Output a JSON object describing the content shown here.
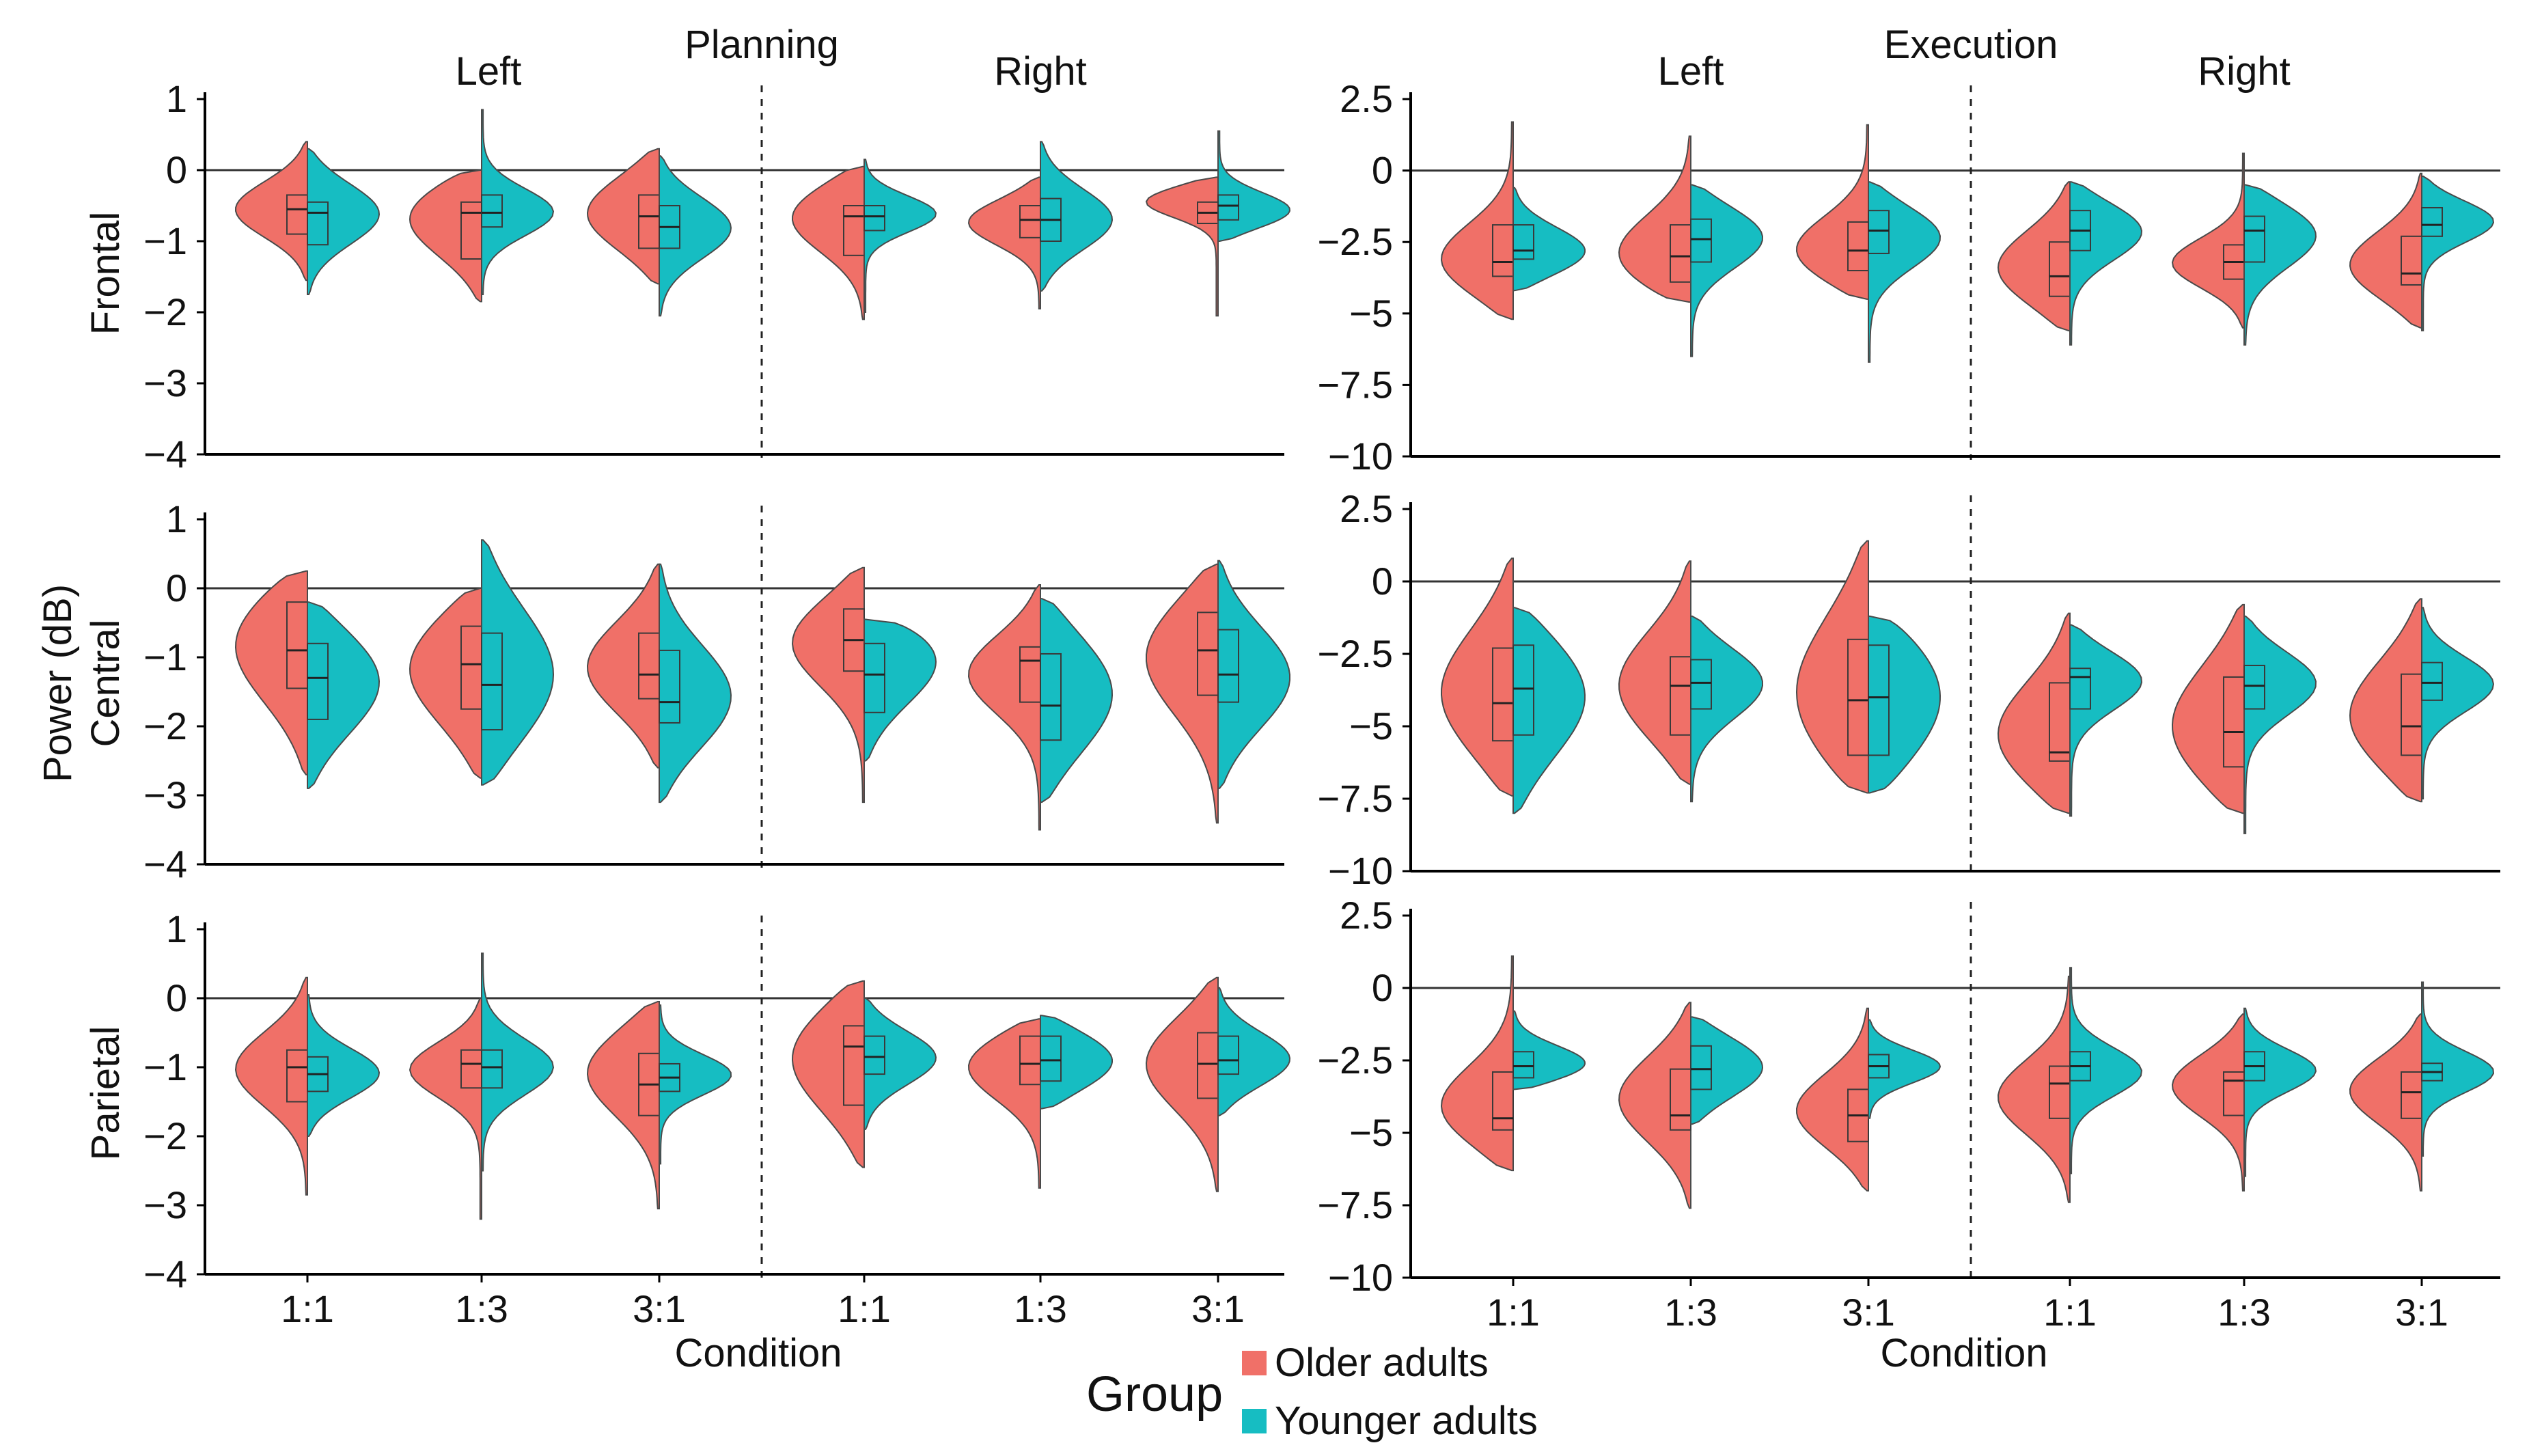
{
  "chart_data": [
    {
      "type": "violin",
      "panel": "planning-frontal",
      "section_title": "Planning",
      "region_label": "Frontal",
      "facet_labels": [
        "Left",
        "Right"
      ],
      "categories": [
        "1:1",
        "1:3",
        "3:1"
      ],
      "ylim": [
        -4,
        1
      ],
      "yticks": [
        1,
        0,
        -1,
        -2,
        -3,
        -4
      ],
      "ytick_labels": [
        "1",
        "0",
        "−1",
        "−2",
        "−3",
        "−4"
      ],
      "reference_line": 0,
      "series": [
        {
          "name": "Older adults",
          "groups": [
            {
              "min": -1.55,
              "q1": -0.9,
              "median": -0.55,
              "q3": -0.35,
              "max": 0.4,
              "mode": -0.55
            },
            {
              "min": -1.85,
              "q1": -1.25,
              "median": -0.6,
              "q3": -0.45,
              "max": 0.0,
              "mode": -0.6
            },
            {
              "min": -1.6,
              "q1": -1.1,
              "median": -0.65,
              "q3": -0.35,
              "max": 0.3,
              "mode": -0.6
            },
            {
              "min": -2.1,
              "q1": -1.2,
              "median": -0.65,
              "q3": -0.5,
              "max": 0.05,
              "mode": -0.6
            },
            {
              "min": -1.95,
              "q1": -0.95,
              "median": -0.7,
              "q3": -0.5,
              "max": -0.1,
              "mode": -0.7
            },
            {
              "min": -2.05,
              "q1": -0.75,
              "median": -0.6,
              "q3": -0.45,
              "max": -0.1,
              "mode": -0.4
            }
          ]
        },
        {
          "name": "Younger adults",
          "groups": [
            {
              "min": -1.75,
              "q1": -1.05,
              "median": -0.6,
              "q3": -0.45,
              "max": 0.3,
              "mode": -0.6
            },
            {
              "min": -1.75,
              "q1": -0.8,
              "median": -0.6,
              "q3": -0.35,
              "max": 0.85,
              "mode": -0.6
            },
            {
              "min": -2.05,
              "q1": -1.1,
              "median": -0.8,
              "q3": -0.5,
              "max": 0.2,
              "mode": -0.8
            },
            {
              "min": -2.0,
              "q1": -0.85,
              "median": -0.65,
              "q3": -0.5,
              "max": 0.15,
              "mode": -0.6
            },
            {
              "min": -1.7,
              "q1": -1.0,
              "median": -0.7,
              "q3": -0.4,
              "max": 0.4,
              "mode": -0.7
            },
            {
              "min": -1.0,
              "q1": -0.7,
              "median": -0.5,
              "q3": -0.35,
              "max": 0.55,
              "mode": -0.6
            }
          ]
        }
      ]
    },
    {
      "type": "violin",
      "panel": "planning-central",
      "region_label": "Central",
      "categories": [
        "1:1",
        "1:3",
        "3:1"
      ],
      "ylim": [
        -4,
        1
      ],
      "yticks": [
        1,
        0,
        -1,
        -2,
        -3,
        -4
      ],
      "ytick_labels": [
        "1",
        "0",
        "−1",
        "−2",
        "−3",
        "−4"
      ],
      "reference_line": 0,
      "series": [
        {
          "name": "Older adults",
          "groups": [
            {
              "min": -2.7,
              "q1": -1.45,
              "median": -0.9,
              "q3": -0.2,
              "max": 0.25,
              "mode": -0.7
            },
            {
              "min": -2.75,
              "q1": -1.75,
              "median": -1.1,
              "q3": -0.55,
              "max": 0.0,
              "mode": -1.1
            },
            {
              "min": -2.6,
              "q1": -1.6,
              "median": -1.25,
              "q3": -0.65,
              "max": 0.35,
              "mode": -1.15
            },
            {
              "min": -3.1,
              "q1": -1.2,
              "median": -0.75,
              "q3": -0.3,
              "max": 0.3,
              "mode": -0.7
            },
            {
              "min": -3.5,
              "q1": -1.65,
              "median": -1.05,
              "q3": -0.85,
              "max": 0.05,
              "mode": -1.2
            },
            {
              "min": -3.4,
              "q1": -1.55,
              "median": -0.9,
              "q3": -0.35,
              "max": 0.35,
              "mode": -0.9
            }
          ]
        },
        {
          "name": "Younger adults",
          "groups": [
            {
              "min": -2.9,
              "q1": -1.9,
              "median": -1.3,
              "q3": -0.8,
              "max": -0.2,
              "mode": -1.3
            },
            {
              "min": -2.85,
              "q1": -2.05,
              "median": -1.4,
              "q3": -0.65,
              "max": 0.7,
              "mode": -1.3
            },
            {
              "min": -3.1,
              "q1": -1.95,
              "median": -1.65,
              "q3": -0.9,
              "max": 0.35,
              "mode": -1.6
            },
            {
              "min": -2.5,
              "q1": -1.8,
              "median": -1.25,
              "q3": -0.8,
              "max": -0.45,
              "mode": -0.85
            },
            {
              "min": -3.1,
              "q1": -2.2,
              "median": -1.7,
              "q3": -0.95,
              "max": -0.15,
              "mode": -1.5
            },
            {
              "min": -2.9,
              "q1": -1.65,
              "median": -1.25,
              "q3": -0.6,
              "max": 0.4,
              "mode": -1.3
            }
          ]
        }
      ]
    },
    {
      "type": "violin",
      "panel": "planning-parietal",
      "region_label": "Parietal",
      "xlabel": "Condition",
      "categories": [
        "1:1",
        "1:3",
        "3:1"
      ],
      "ylim": [
        -4,
        1
      ],
      "yticks": [
        1,
        0,
        -1,
        -2,
        -3,
        -4
      ],
      "ytick_labels": [
        "1",
        "0",
        "−1",
        "−2",
        "−3",
        "−4"
      ],
      "reference_line": 0,
      "series": [
        {
          "name": "Older adults",
          "groups": [
            {
              "min": -2.85,
              "q1": -1.5,
              "median": -1.0,
              "q3": -0.75,
              "max": 0.3,
              "mode": -1.0
            },
            {
              "min": -3.2,
              "q1": -1.3,
              "median": -0.95,
              "q3": -0.75,
              "max": 0.0,
              "mode": -1.0
            },
            {
              "min": -3.05,
              "q1": -1.7,
              "median": -1.25,
              "q3": -0.8,
              "max": -0.05,
              "mode": -1.0
            },
            {
              "min": -2.45,
              "q1": -1.55,
              "median": -0.7,
              "q3": -0.4,
              "max": 0.25,
              "mode": -0.8
            },
            {
              "min": -2.75,
              "q1": -1.25,
              "median": -0.95,
              "q3": -0.55,
              "max": -0.3,
              "mode": -0.9
            },
            {
              "min": -2.8,
              "q1": -1.45,
              "median": -0.95,
              "q3": -0.5,
              "max": 0.3,
              "mode": -0.9
            }
          ]
        },
        {
          "name": "Younger adults",
          "groups": [
            {
              "min": -2.0,
              "q1": -1.35,
              "median": -1.1,
              "q3": -0.85,
              "max": 0.05,
              "mode": -1.1
            },
            {
              "min": -2.5,
              "q1": -1.3,
              "median": -1.0,
              "q3": -0.75,
              "max": 0.65,
              "mode": -1.0
            },
            {
              "min": -2.4,
              "q1": -1.35,
              "median": -1.15,
              "q3": -0.95,
              "max": -0.1,
              "mode": -1.1
            },
            {
              "min": -1.9,
              "q1": -1.1,
              "median": -0.85,
              "q3": -0.55,
              "max": 0.0,
              "mode": -0.85
            },
            {
              "min": -1.6,
              "q1": -1.2,
              "median": -0.9,
              "q3": -0.55,
              "max": -0.25,
              "mode": -0.9
            },
            {
              "min": -1.7,
              "q1": -1.1,
              "median": -0.9,
              "q3": -0.55,
              "max": 0.15,
              "mode": -0.9
            }
          ]
        }
      ]
    },
    {
      "type": "violin",
      "panel": "execution-frontal",
      "section_title": "Execution",
      "facet_labels": [
        "Left",
        "Right"
      ],
      "categories": [
        "1:1",
        "1:3",
        "3:1"
      ],
      "ylim": [
        -10,
        2.5
      ],
      "yticks": [
        2.5,
        0,
        -2.5,
        -5,
        -7.5,
        -10
      ],
      "ytick_labels": [
        "2.5",
        "0",
        "−2.5",
        "−5",
        "−7.5",
        "−10"
      ],
      "reference_line": 0,
      "series": [
        {
          "name": "Older adults",
          "groups": [
            {
              "min": -5.2,
              "q1": -3.7,
              "median": -3.2,
              "q3": -1.9,
              "max": 1.7,
              "mode": -3.3
            },
            {
              "min": -4.6,
              "q1": -3.9,
              "median": -3.0,
              "q3": -1.9,
              "max": 1.2,
              "mode": -3.2
            },
            {
              "min": -4.5,
              "q1": -3.5,
              "median": -2.8,
              "q3": -1.8,
              "max": 1.6,
              "mode": -3.0
            },
            {
              "min": -5.6,
              "q1": -4.4,
              "median": -3.7,
              "q3": -2.5,
              "max": -0.4,
              "mode": -3.5
            },
            {
              "min": -5.5,
              "q1": -3.8,
              "median": -3.2,
              "q3": -2.6,
              "max": 0.6,
              "mode": -3.3
            },
            {
              "min": -5.5,
              "q1": -4.0,
              "median": -3.6,
              "q3": -2.3,
              "max": -0.1,
              "mode": -3.4
            }
          ]
        },
        {
          "name": "Younger adults",
          "groups": [
            {
              "min": -4.2,
              "q1": -3.1,
              "median": -2.8,
              "q3": -1.9,
              "max": -0.6,
              "mode": -2.9
            },
            {
              "min": -6.5,
              "q1": -3.2,
              "median": -2.4,
              "q3": -1.7,
              "max": -0.5,
              "mode": -2.2
            },
            {
              "min": -6.7,
              "q1": -2.9,
              "median": -2.1,
              "q3": -1.4,
              "max": -0.4,
              "mode": -2.2
            },
            {
              "min": -6.1,
              "q1": -2.8,
              "median": -2.1,
              "q3": -1.4,
              "max": -0.4,
              "mode": -2.0
            },
            {
              "min": -6.1,
              "q1": -3.2,
              "median": -2.1,
              "q3": -1.6,
              "max": -0.5,
              "mode": -2.1
            },
            {
              "min": -5.6,
              "q1": -2.3,
              "median": -1.9,
              "q3": -1.3,
              "max": -0.2,
              "mode": -1.7
            }
          ]
        }
      ]
    },
    {
      "type": "violin",
      "panel": "execution-central",
      "categories": [
        "1:1",
        "1:3",
        "3:1"
      ],
      "ylim": [
        -10,
        2.5
      ],
      "yticks": [
        2.5,
        0,
        -2.5,
        -5,
        -7.5,
        -10
      ],
      "ytick_labels": [
        "2.5",
        "0",
        "−2.5",
        "−5",
        "−7.5",
        "−10"
      ],
      "reference_line": 0,
      "series": [
        {
          "name": "Older adults",
          "groups": [
            {
              "min": -7.4,
              "q1": -5.5,
              "median": -4.2,
              "q3": -2.3,
              "max": 0.8,
              "mode": -4.0
            },
            {
              "min": -7.0,
              "q1": -5.3,
              "median": -3.6,
              "q3": -2.6,
              "max": 0.7,
              "mode": -3.7
            },
            {
              "min": -7.3,
              "q1": -6.0,
              "median": -4.1,
              "q3": -2.0,
              "max": 1.4,
              "mode": -4.2
            },
            {
              "min": -8.0,
              "q1": -6.2,
              "median": -5.9,
              "q3": -3.5,
              "max": -1.1,
              "mode": -5.5
            },
            {
              "min": -8.0,
              "q1": -6.4,
              "median": -5.2,
              "q3": -3.3,
              "max": -0.8,
              "mode": -5.2
            },
            {
              "min": -7.6,
              "q1": -6.0,
              "median": -5.0,
              "q3": -3.2,
              "max": -0.6,
              "mode": -4.8
            }
          ]
        },
        {
          "name": "Younger adults",
          "groups": [
            {
              "min": -8.0,
              "q1": -5.3,
              "median": -3.7,
              "q3": -2.2,
              "max": -0.9,
              "mode": -3.8
            },
            {
              "min": -7.6,
              "q1": -4.4,
              "median": -3.5,
              "q3": -2.7,
              "max": -1.2,
              "mode": -3.4
            },
            {
              "min": -7.3,
              "q1": -6.0,
              "median": -4.0,
              "q3": -2.2,
              "max": -1.2,
              "mode": -3.8
            },
            {
              "min": -8.1,
              "q1": -4.4,
              "median": -3.3,
              "q3": -3.0,
              "max": -1.5,
              "mode": -3.3
            },
            {
              "min": -8.7,
              "q1": -4.4,
              "median": -3.6,
              "q3": -2.9,
              "max": -1.2,
              "mode": -3.4
            },
            {
              "min": -7.5,
              "q1": -4.1,
              "median": -3.5,
              "q3": -2.8,
              "max": -0.9,
              "mode": -3.5
            }
          ]
        }
      ]
    },
    {
      "type": "violin",
      "panel": "execution-parietal",
      "xlabel": "Condition",
      "categories": [
        "1:1",
        "1:3",
        "3:1"
      ],
      "ylim": [
        -10,
        2.5
      ],
      "yticks": [
        2.5,
        0,
        -2.5,
        -5,
        -7.5,
        -10
      ],
      "ytick_labels": [
        "2.5",
        "0",
        "−2.5",
        "−5",
        "−7.5",
        "−10"
      ],
      "reference_line": 0,
      "series": [
        {
          "name": "Older adults",
          "groups": [
            {
              "min": -6.3,
              "q1": -4.9,
              "median": -4.5,
              "q3": -2.9,
              "max": 1.1,
              "mode": -4.3
            },
            {
              "min": -7.6,
              "q1": -4.9,
              "median": -4.4,
              "q3": -2.8,
              "max": -0.5,
              "mode": -3.8
            },
            {
              "min": -7.0,
              "q1": -5.3,
              "median": -4.4,
              "q3": -3.5,
              "max": -0.7,
              "mode": -4.3
            },
            {
              "min": -7.4,
              "q1": -4.5,
              "median": -3.3,
              "q3": -2.7,
              "max": 0.4,
              "mode": -3.8
            },
            {
              "min": -7.0,
              "q1": -4.4,
              "median": -3.2,
              "q3": -2.9,
              "max": -0.9,
              "mode": -3.3
            },
            {
              "min": -7.0,
              "q1": -4.5,
              "median": -3.6,
              "q3": -2.9,
              "max": -0.9,
              "mode": -3.5
            }
          ]
        },
        {
          "name": "Younger adults",
          "groups": [
            {
              "min": -3.5,
              "q1": -3.1,
              "median": -2.7,
              "q3": -2.2,
              "max": -0.8,
              "mode": -2.7
            },
            {
              "min": -4.7,
              "q1": -3.5,
              "median": -2.8,
              "q3": -2.0,
              "max": -1.0,
              "mode": -2.7
            },
            {
              "min": -4.5,
              "q1": -3.1,
              "median": -2.7,
              "q3": -2.3,
              "max": -1.1,
              "mode": -2.7
            },
            {
              "min": -6.4,
              "q1": -3.2,
              "median": -2.7,
              "q3": -2.2,
              "max": 0.7,
              "mode": -2.9
            },
            {
              "min": -6.5,
              "q1": -3.2,
              "median": -2.7,
              "q3": -2.2,
              "max": -0.7,
              "mode": -2.8
            },
            {
              "min": -5.8,
              "q1": -3.2,
              "median": -2.9,
              "q3": -2.6,
              "max": 0.2,
              "mode": -2.9
            }
          ]
        }
      ]
    }
  ],
  "shared": {
    "ylabel": "Power (dB)",
    "colors": {
      "older": "#f07068",
      "younger": "#16bdc2"
    },
    "legend": {
      "title": "Group",
      "placement": "bottom-center",
      "items": [
        {
          "name": "Older adults",
          "color": "#f07068"
        },
        {
          "name": "Younger adults",
          "color": "#16bdc2"
        }
      ]
    }
  }
}
